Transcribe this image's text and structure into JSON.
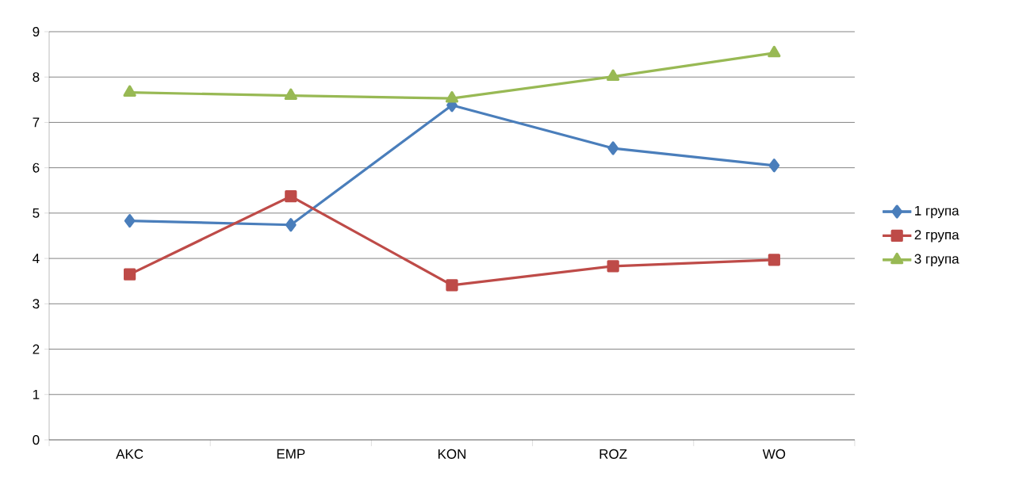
{
  "chart_data": {
    "type": "line",
    "categories": [
      "AKC",
      "EMP",
      "KON",
      "ROZ",
      "WO"
    ],
    "series": [
      {
        "name": "1 група",
        "color": "#4a7ebb",
        "marker": "diamond",
        "values": [
          4.83,
          4.74,
          7.38,
          6.43,
          6.05
        ]
      },
      {
        "name": "2 група",
        "color": "#be4b48",
        "marker": "square",
        "values": [
          3.65,
          5.37,
          3.41,
          3.83,
          3.97
        ]
      },
      {
        "name": "3 група",
        "color": "#98b954",
        "marker": "triangle",
        "values": [
          7.66,
          7.59,
          7.53,
          8.01,
          8.53
        ]
      }
    ],
    "ylim": [
      0,
      9
    ],
    "yticks": [
      0,
      1,
      2,
      3,
      4,
      5,
      6,
      7,
      8,
      9
    ],
    "grid": "y",
    "legend": "right",
    "line_style": "solid"
  }
}
